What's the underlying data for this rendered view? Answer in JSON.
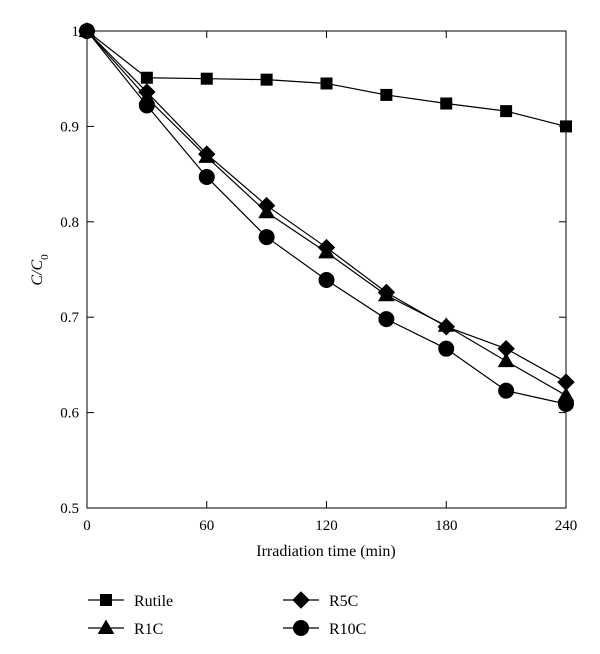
{
  "chart_data": {
    "type": "line",
    "xlabel": "Irradiation time (min)",
    "ylabel_main": "C/C",
    "ylabel_sub": "0",
    "xlim": [
      0,
      240
    ],
    "ylim": [
      0.5,
      1.0
    ],
    "x_ticks": [
      0,
      60,
      120,
      180,
      240
    ],
    "x_tick_labels": [
      "0",
      "60",
      "120",
      "180",
      "240"
    ],
    "y_ticks": [
      0.5,
      0.6,
      0.7,
      0.8,
      0.9,
      1.0
    ],
    "y_tick_labels": [
      "0.5",
      "0.6",
      "0.7",
      "0.8",
      "0.9",
      "1"
    ],
    "grid": false,
    "legend_position": "bottom",
    "x": [
      0,
      30,
      60,
      90,
      120,
      150,
      180,
      210,
      240
    ],
    "series": [
      {
        "name": "Rutile",
        "marker": "square",
        "values": [
          1.0,
          0.951,
          0.95,
          0.949,
          0.945,
          0.933,
          0.924,
          0.916,
          0.9
        ]
      },
      {
        "name": "R1C",
        "marker": "triangle",
        "values": [
          1.0,
          0.93,
          0.868,
          0.81,
          0.768,
          0.723,
          0.691,
          0.654,
          0.618
        ]
      },
      {
        "name": "R5C",
        "marker": "diamond",
        "values": [
          1.0,
          0.936,
          0.871,
          0.817,
          0.773,
          0.726,
          0.69,
          0.667,
          0.632
        ]
      },
      {
        "name": "R10C",
        "marker": "circle",
        "values": [
          1.0,
          0.922,
          0.847,
          0.784,
          0.739,
          0.698,
          0.667,
          0.623,
          0.609
        ]
      }
    ],
    "line_color": "#000000"
  }
}
